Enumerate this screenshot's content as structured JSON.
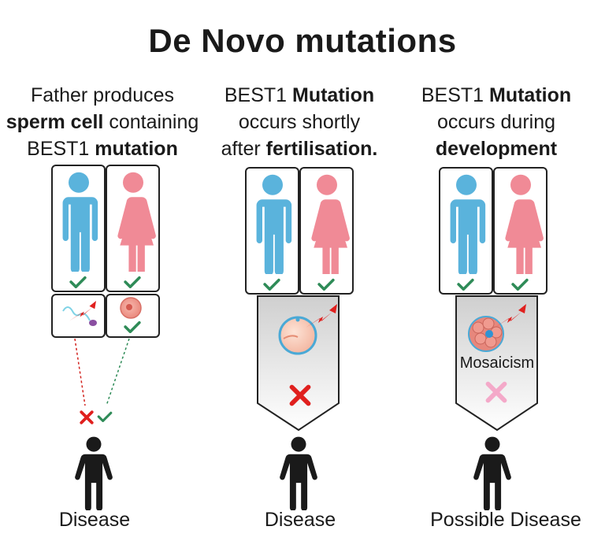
{
  "title": "De Novo mutations",
  "columns": [
    {
      "caption_parts": [
        {
          "text": "Father produces",
          "bold": false,
          "br": true
        },
        {
          "text": "sperm cell",
          "bold": true
        },
        {
          "text": " containing",
          "bold": false,
          "br": true
        },
        {
          "text": "BEST1 ",
          "bold": false
        },
        {
          "text": "mutation",
          "bold": true
        }
      ],
      "outcome": "Disease"
    },
    {
      "caption_parts": [
        {
          "text": "BEST1 ",
          "bold": false
        },
        {
          "text": "Mutation",
          "bold": true,
          "br": true
        },
        {
          "text": "occurs shortly",
          "bold": false,
          "br": true
        },
        {
          "text": "after ",
          "bold": false
        },
        {
          "text": "fertilisation.",
          "bold": true
        }
      ],
      "outcome": "Disease"
    },
    {
      "caption_parts": [
        {
          "text": "BEST1 ",
          "bold": false
        },
        {
          "text": "Mutation",
          "bold": true,
          "br": true
        },
        {
          "text": "occurs during",
          "bold": false,
          "br": true
        },
        {
          "text": "development",
          "bold": true
        }
      ],
      "outcome": "Possible Disease",
      "label": "Mosaicism"
    }
  ],
  "colors": {
    "male": "#5ab3dc",
    "female": "#f08a96",
    "check": "#2e8b57",
    "cross": "#e0201e",
    "cross_light": "#f4a9c9",
    "child": "#1a1a1a",
    "panel": "#d9d9d9"
  }
}
